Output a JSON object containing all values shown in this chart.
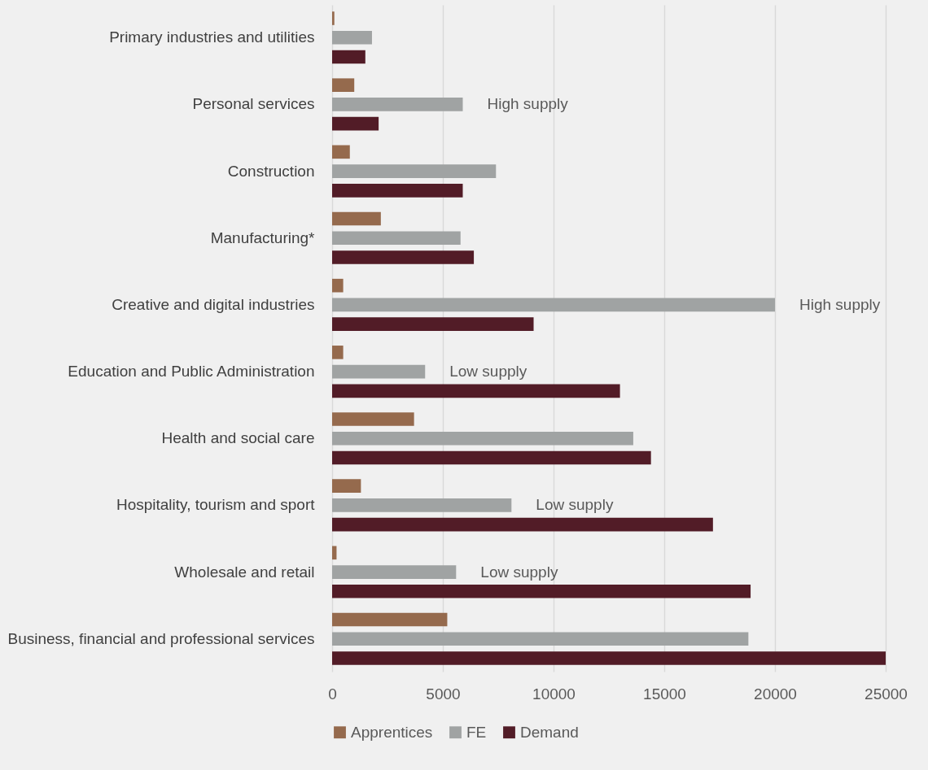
{
  "chart_data": {
    "type": "bar",
    "orientation": "horizontal",
    "categories": [
      "Primary industries and utilities",
      "Personal services",
      "Construction",
      "Manufacturing*",
      "Creative and digital industries",
      "Education and Public Administration",
      "Health and social care",
      "Hospitality, tourism and sport",
      "Wholesale and retail",
      "Business, financial and professional services"
    ],
    "series": [
      {
        "name": "Apprentices",
        "color": "#956a4d",
        "values": [
          100,
          1000,
          800,
          2200,
          500,
          500,
          3700,
          1300,
          200,
          5200
        ]
      },
      {
        "name": "FE",
        "color": "#a0a3a3",
        "values": [
          1800,
          5900,
          7400,
          5800,
          20000,
          4200,
          13600,
          8100,
          5600,
          18800
        ]
      },
      {
        "name": "Demand",
        "color": "#521c27",
        "values": [
          1500,
          2100,
          5900,
          6400,
          9100,
          13000,
          14400,
          17200,
          18900,
          25000
        ]
      }
    ],
    "xlim": [
      0,
      25000
    ],
    "xticks": [
      0,
      5000,
      10000,
      15000,
      20000,
      25000
    ],
    "grid": "x",
    "legend": "bottom",
    "annotations": [
      {
        "text": "High supply",
        "x": 5900,
        "y": "Personal services"
      },
      {
        "text": "High supply",
        "x": 20000,
        "y": "Creative and digital industries"
      },
      {
        "text": "Low supply",
        "x": 4200,
        "y": "Education and Public Administration"
      },
      {
        "text": "Low supply",
        "x": 8100,
        "y": "Hospitality, tourism and sport"
      },
      {
        "text": "Low supply",
        "x": 5600,
        "y": "Wholesale and retail"
      }
    ]
  }
}
